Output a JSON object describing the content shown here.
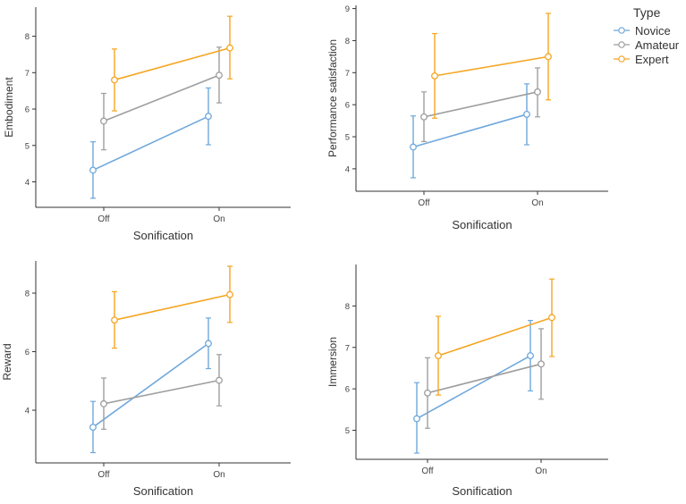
{
  "legend": {
    "title": "Type",
    "items": [
      {
        "name": "Novice",
        "color": "#6fa8dc"
      },
      {
        "name": "Amateur",
        "color": "#9e9e9e"
      },
      {
        "name": "Expert",
        "color": "#f5a623"
      }
    ]
  },
  "chart_data": [
    {
      "type": "line",
      "title": "",
      "xlabel": "Sonification",
      "ylabel": "Embodiment",
      "categories": [
        "Off",
        "On"
      ],
      "ylim": [
        3.3,
        8.8
      ],
      "yticks": [
        4,
        5,
        6,
        7,
        8
      ],
      "series": [
        {
          "name": "Novice",
          "values": [
            4.32,
            5.8
          ],
          "err_low": [
            3.55,
            5.02
          ],
          "err_high": [
            5.1,
            6.58
          ]
        },
        {
          "name": "Amateur",
          "values": [
            5.67,
            6.93
          ],
          "err_low": [
            4.88,
            6.17
          ],
          "err_high": [
            6.43,
            7.7
          ]
        },
        {
          "name": "Expert",
          "values": [
            6.8,
            7.68
          ],
          "err_low": [
            5.95,
            6.83
          ],
          "err_high": [
            7.65,
            8.55
          ]
        }
      ]
    },
    {
      "type": "line",
      "title": "",
      "xlabel": "Sonification",
      "ylabel": "Performance satisfaction",
      "categories": [
        "Off",
        "On"
      ],
      "ylim": [
        3.3,
        9.1
      ],
      "yticks": [
        4,
        5,
        6,
        7,
        8,
        9
      ],
      "series": [
        {
          "name": "Novice",
          "values": [
            4.68,
            5.7
          ],
          "err_low": [
            3.72,
            4.75
          ],
          "err_high": [
            5.65,
            6.65
          ]
        },
        {
          "name": "Amateur",
          "values": [
            5.62,
            6.4
          ],
          "err_low": [
            4.85,
            5.62
          ],
          "err_high": [
            6.4,
            7.15
          ]
        },
        {
          "name": "Expert",
          "values": [
            6.9,
            7.5
          ],
          "err_low": [
            5.58,
            6.15
          ],
          "err_high": [
            8.22,
            8.85
          ]
        }
      ]
    },
    {
      "type": "line",
      "title": "",
      "xlabel": "Sonification",
      "ylabel": "Reward",
      "categories": [
        "Off",
        "On"
      ],
      "ylim": [
        2.2,
        9.1
      ],
      "yticks": [
        4,
        6,
        8
      ],
      "series": [
        {
          "name": "Novice",
          "values": [
            3.42,
            6.28
          ],
          "err_low": [
            2.55,
            5.42
          ],
          "err_high": [
            4.3,
            7.15
          ]
        },
        {
          "name": "Amateur",
          "values": [
            4.22,
            5.02
          ],
          "err_low": [
            3.35,
            4.15
          ],
          "err_high": [
            5.1,
            5.9
          ]
        },
        {
          "name": "Expert",
          "values": [
            7.08,
            7.95
          ],
          "err_low": [
            6.12,
            7.0
          ],
          "err_high": [
            8.05,
            8.92
          ]
        }
      ]
    },
    {
      "type": "line",
      "title": "",
      "xlabel": "Sonification",
      "ylabel": "Immersion",
      "categories": [
        "Off",
        "On"
      ],
      "ylim": [
        4.3,
        9.0
      ],
      "yticks": [
        5,
        6,
        7,
        8
      ],
      "series": [
        {
          "name": "Novice",
          "values": [
            5.28,
            6.8
          ],
          "err_low": [
            4.45,
            5.95
          ],
          "err_high": [
            6.15,
            7.65
          ]
        },
        {
          "name": "Amateur",
          "values": [
            5.9,
            6.6
          ],
          "err_low": [
            5.05,
            5.75
          ],
          "err_high": [
            6.75,
            7.45
          ]
        },
        {
          "name": "Expert",
          "values": [
            6.8,
            7.72
          ],
          "err_low": [
            5.85,
            6.78
          ],
          "err_high": [
            7.75,
            8.65
          ]
        }
      ]
    }
  ]
}
